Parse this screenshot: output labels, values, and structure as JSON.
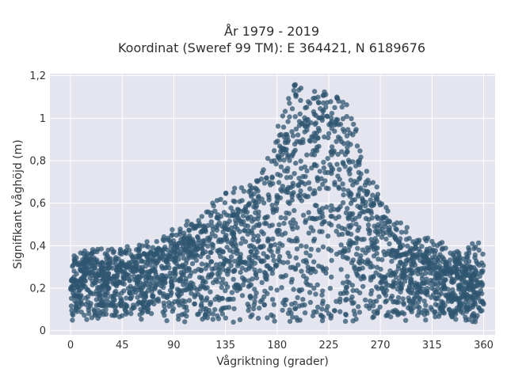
{
  "chart_data": {
    "type": "scatter",
    "title_line1": "År 1979 - 2019",
    "title_line2": "Koordinat (Sweref 99 TM): E 364421, N 6189676",
    "xlabel": "Vågriktning (grader)",
    "ylabel": "Signifikant våghöjd (m)",
    "xlim": [
      -18,
      370
    ],
    "ylim": [
      -0.02,
      1.21
    ],
    "x_ticks": [
      0,
      45,
      90,
      135,
      180,
      225,
      270,
      315,
      360
    ],
    "x_tick_labels": [
      "0",
      "45",
      "90",
      "135",
      "180",
      "225",
      "270",
      "315",
      "360"
    ],
    "y_ticks": [
      0,
      0.2,
      0.4,
      0.6,
      0.8,
      1.0,
      1.2
    ],
    "y_tick_labels": [
      "0",
      "0,2",
      "0,4",
      "0,6",
      "0,8",
      "1",
      "1,2"
    ],
    "grid": true,
    "marker_color": "#2f5570",
    "plot_bg": "#e5e5ef",
    "envelope": {
      "direction": [
        0,
        15,
        30,
        45,
        60,
        75,
        90,
        105,
        120,
        135,
        150,
        165,
        180,
        195,
        210,
        225,
        240,
        255,
        270,
        285,
        300,
        315,
        330,
        345,
        360
      ],
      "lower": [
        0.07,
        0.07,
        0.07,
        0.07,
        0.07,
        0.07,
        0.07,
        0.07,
        0.07,
        0.07,
        0.07,
        0.07,
        0.07,
        0.07,
        0.06,
        0.06,
        0.06,
        0.06,
        0.06,
        0.06,
        0.06,
        0.06,
        0.06,
        0.06,
        0.07
      ],
      "dense_upper": [
        0.3,
        0.32,
        0.32,
        0.33,
        0.35,
        0.37,
        0.4,
        0.44,
        0.48,
        0.52,
        0.56,
        0.62,
        0.8,
        0.95,
        1.0,
        1.0,
        0.93,
        0.7,
        0.52,
        0.42,
        0.36,
        0.33,
        0.32,
        0.3,
        0.32
      ],
      "max": [
        0.35,
        0.38,
        0.39,
        0.39,
        0.41,
        0.45,
        0.48,
        0.53,
        0.58,
        0.66,
        0.68,
        0.72,
        0.96,
        1.16,
        1.14,
        1.12,
        1.1,
        0.85,
        0.64,
        0.53,
        0.46,
        0.43,
        0.42,
        0.4,
        0.45
      ]
    }
  }
}
